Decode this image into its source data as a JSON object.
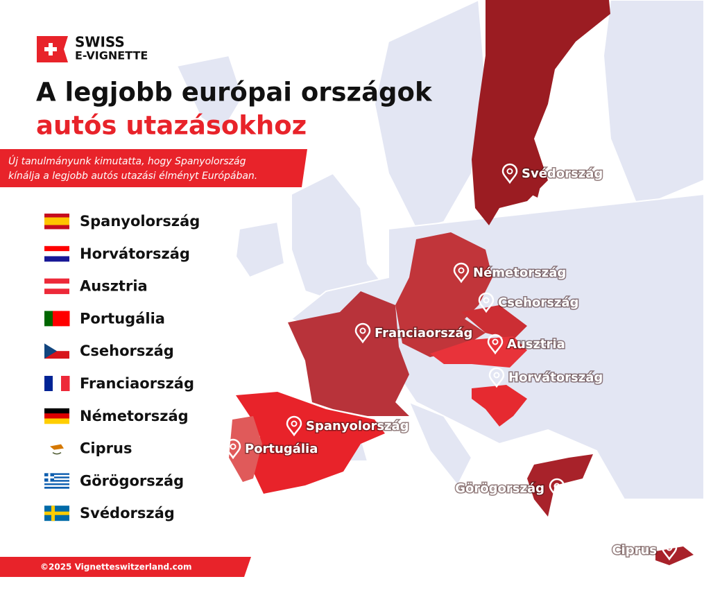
{
  "brand": {
    "line1": "SWISS",
    "line2": "E-VIGNETTE"
  },
  "title": {
    "line1": "A legjobb európai országok",
    "line2": "autós utazásokhoz"
  },
  "subtitle": [
    "Új tanulmányunk kimutatta, hogy Spanyolország",
    "kínálja a legjobb autós utazási élményt Európában."
  ],
  "ranking": [
    "Spanyolország",
    "Horvátország",
    "Ausztria",
    "Portugália",
    "Csehország",
    "Franciaország",
    "Németország",
    "Ciprus",
    "Görögország",
    "Svédország"
  ],
  "map_labels": [
    "Svédország",
    "Németország",
    "Csehország",
    "Franciaország",
    "Ausztria",
    "Horvátország",
    "Spanyolország",
    "Portugália",
    "Görögország",
    "Ciprus"
  ],
  "footer": "©2025 Vignetteswitzerland.com"
}
